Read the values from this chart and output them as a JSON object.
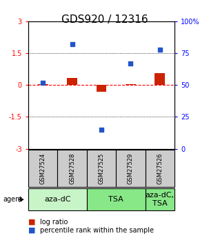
{
  "title": "GDS920 / 12316",
  "samples": [
    "GSM27524",
    "GSM27528",
    "GSM27525",
    "GSM27529",
    "GSM27526"
  ],
  "log_ratio": [
    0.05,
    0.35,
    -0.3,
    0.05,
    0.55
  ],
  "percentile_rank": [
    52,
    82,
    15,
    67,
    78
  ],
  "ylim_left": [
    -3,
    3
  ],
  "ylim_right": [
    0,
    100
  ],
  "yticks_left": [
    -3,
    -1.5,
    0,
    1.5,
    3
  ],
  "yticks_right": [
    0,
    25,
    50,
    75,
    100
  ],
  "yticklabels_right": [
    "0",
    "25",
    "50",
    "75",
    "100%"
  ],
  "agent_groups": [
    {
      "label": "aza-dC",
      "span": [
        0,
        2
      ],
      "color": "#c8f5c8"
    },
    {
      "label": "TSA",
      "span": [
        2,
        4
      ],
      "color": "#88e888"
    },
    {
      "label": "aza-dC,\nTSA",
      "span": [
        4,
        5
      ],
      "color": "#88e888"
    }
  ],
  "log_ratio_color": "#cc2200",
  "percentile_color": "#2255cc",
  "sample_box_color": "#cccccc",
  "background_color": "#ffffff",
  "title_fontsize": 11,
  "legend_fontsize": 7,
  "tick_fontsize": 7,
  "agent_fontsize": 8,
  "sample_fontsize": 6
}
